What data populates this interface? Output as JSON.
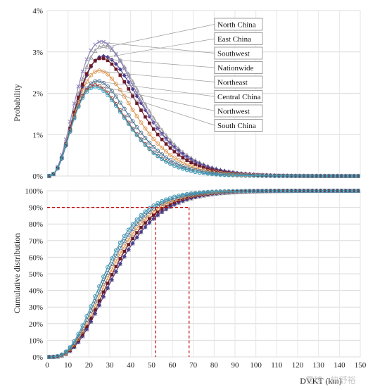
{
  "watermark": "雪球 · 快舒裕",
  "chart_data": [
    {
      "type": "line",
      "panel": "top",
      "ylabel": "Probability",
      "xlim": [
        0,
        150
      ],
      "ylim": [
        0,
        4
      ],
      "x_ticks": [
        "0",
        "10",
        "20",
        "30",
        "40",
        "50",
        "60",
        "70",
        "80",
        "90",
        "100",
        "110",
        "120",
        "130",
        "140",
        "150"
      ],
      "y_ticks": [
        "0%",
        "1%",
        "2%",
        "3%",
        "4%"
      ],
      "grid": true,
      "legend_placement": "right callouts",
      "series": [
        {
          "name": "North China",
          "color": "#a0a0a0",
          "marker": "triangle",
          "peak_x": 27,
          "peak_y": 3.15
        },
        {
          "name": "East China",
          "color": "#4b3f8f",
          "marker": "diamond",
          "peak_x": 27,
          "peak_y": 2.9
        },
        {
          "name": "Southwest",
          "color": "#8a7fb8",
          "marker": "cross",
          "peak_x": 26,
          "peak_y": 3.25
        },
        {
          "name": "Nationwide",
          "color": "#6b1a2a",
          "marker": "square",
          "peak_x": 26,
          "peak_y": 2.85
        },
        {
          "name": "Northeast",
          "color": "#e0944a",
          "marker": "circle",
          "peak_x": 25,
          "peak_y": 2.55
        },
        {
          "name": "Central China",
          "color": "#4a6f8f",
          "marker": "circle",
          "peak_x": 24,
          "peak_y": 2.3
        },
        {
          "name": "Northwest",
          "color": "#a03a30",
          "marker": "circle",
          "peak_x": 23,
          "peak_y": 2.2
        },
        {
          "name": "South China",
          "color": "#36a8c8",
          "marker": "circle",
          "peak_x": 23,
          "peak_y": 2.15
        }
      ]
    },
    {
      "type": "line",
      "panel": "bottom",
      "xlabel": "DVKT (km)",
      "ylabel": "Cumulative distribution",
      "xlim": [
        0,
        150
      ],
      "ylim": [
        0,
        100
      ],
      "x_ticks": [
        "0",
        "10",
        "20",
        "30",
        "40",
        "50",
        "60",
        "70",
        "80",
        "90",
        "100",
        "110",
        "120",
        "130",
        "140",
        "150"
      ],
      "y_ticks": [
        "0%",
        "10%",
        "20%",
        "30%",
        "40%",
        "50%",
        "60%",
        "70%",
        "80%",
        "90%",
        "100%"
      ],
      "grid": true,
      "reference_lines": [
        {
          "kind": "horizontal",
          "y": 90,
          "color": "#c00000",
          "style": "dashed"
        },
        {
          "kind": "vertical",
          "x": 52,
          "color": "#c00000",
          "style": "dashed"
        },
        {
          "kind": "vertical",
          "x": 68,
          "color": "#c00000",
          "style": "dashed"
        }
      ]
    }
  ]
}
